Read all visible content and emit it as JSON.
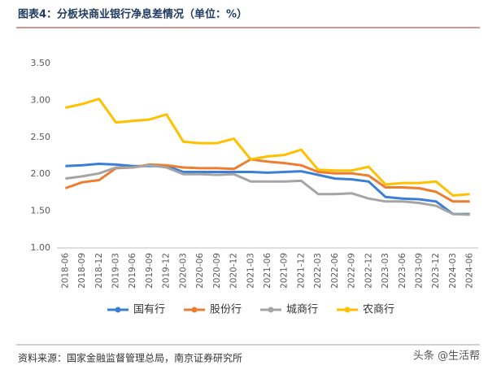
{
  "chart_data": {
    "type": "line",
    "title": "图表4：分板块商业银行净息差情况（单位：%）",
    "source": "资料来源：国家金融监督管理总局，南京证券研究所",
    "watermark": "头条 @生活帮",
    "categories": [
      "2018-06",
      "2018-09",
      "2018-12",
      "2019-03",
      "2019-06",
      "2019-09",
      "2019-12",
      "2020-03",
      "2020-06",
      "2020-09",
      "2020-12",
      "2021-03",
      "2021-06",
      "2021-09",
      "2021-12",
      "2022-03",
      "2022-06",
      "2022-09",
      "2022-12",
      "2023-03",
      "2023-06",
      "2023-09",
      "2023-12",
      "2024-03",
      "2024-06"
    ],
    "series": [
      {
        "name": "国有行",
        "color": "#3a7fd5",
        "values": [
          2.11,
          2.12,
          2.14,
          2.13,
          2.11,
          2.11,
          2.11,
          2.03,
          2.03,
          2.03,
          2.03,
          2.03,
          2.02,
          2.03,
          2.04,
          1.99,
          1.94,
          1.93,
          1.9,
          1.69,
          1.67,
          1.66,
          1.63,
          1.46,
          1.46
        ]
      },
      {
        "name": "股份行",
        "color": "#ed7d31",
        "values": [
          1.81,
          1.89,
          1.92,
          2.08,
          2.09,
          2.13,
          2.12,
          2.09,
          2.08,
          2.08,
          2.07,
          2.2,
          2.17,
          2.15,
          2.12,
          2.03,
          2.01,
          2.01,
          1.98,
          1.82,
          1.82,
          1.81,
          1.76,
          1.63,
          1.63
        ]
      },
      {
        "name": "城商行",
        "color": "#a5a5a5",
        "values": [
          1.94,
          1.97,
          2.01,
          2.09,
          2.09,
          2.12,
          2.09,
          2.0,
          2.0,
          1.99,
          2.0,
          1.9,
          1.9,
          1.9,
          1.91,
          1.73,
          1.73,
          1.74,
          1.67,
          1.63,
          1.63,
          1.61,
          1.57,
          1.46,
          1.45
        ]
      },
      {
        "name": "农商行",
        "color": "#ffc000",
        "values": [
          2.9,
          2.95,
          3.02,
          2.7,
          2.72,
          2.74,
          2.81,
          2.44,
          2.42,
          2.42,
          2.48,
          2.2,
          2.24,
          2.26,
          2.33,
          2.06,
          2.05,
          2.05,
          2.1,
          1.86,
          1.88,
          1.88,
          1.9,
          1.71,
          1.73
        ]
      }
    ],
    "ylim": [
      1,
      3.5
    ],
    "yticks": [
      {
        "value": 1,
        "label": "1.00"
      },
      {
        "value": 1.5,
        "label": "1.50"
      },
      {
        "value": 2,
        "label": "2.00"
      },
      {
        "value": 2.5,
        "label": "2.50"
      },
      {
        "value": 3,
        "label": "3.00"
      },
      {
        "value": 3.5,
        "label": "3.50"
      }
    ],
    "grid": false
  }
}
